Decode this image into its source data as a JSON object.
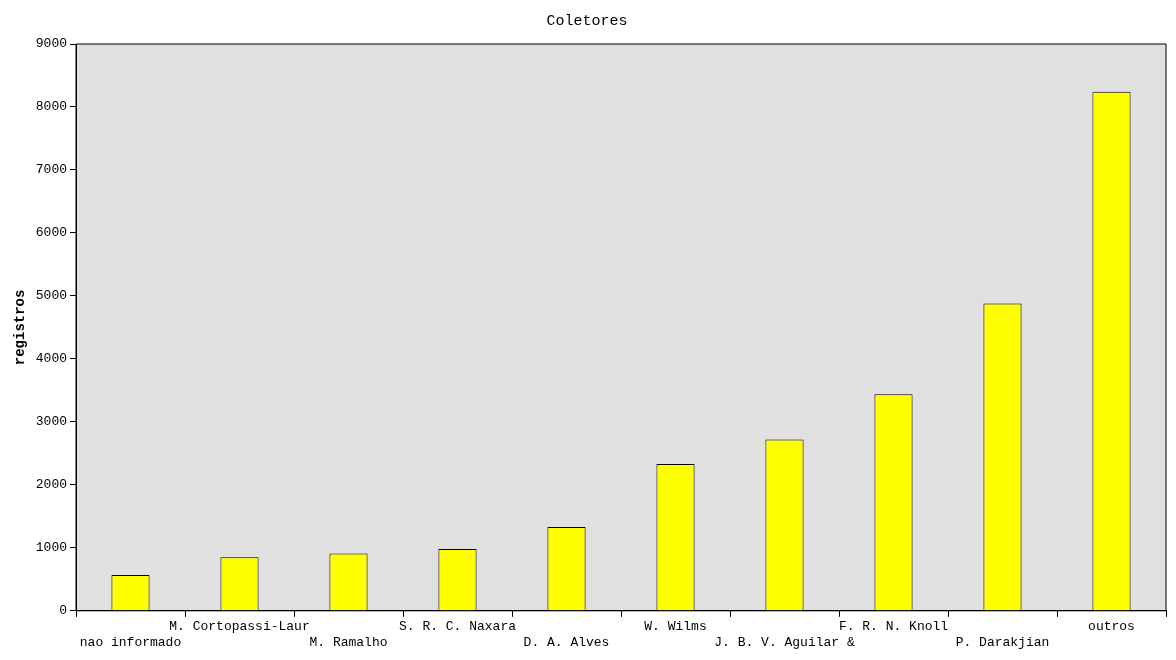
{
  "chart_data": {
    "type": "bar",
    "title": "Coletores",
    "ylabel": "registros",
    "categories": [
      "nao informado",
      "M. Cortopassi-Laur",
      "M. Ramalho",
      "S. R. C. Naxara",
      "D. A. Alves",
      "W. Wilms",
      "J. B. V. Aguilar &",
      "F. R. N. Knoll",
      "P. Darakjian",
      "outros"
    ],
    "values": [
      570,
      850,
      910,
      980,
      1330,
      2330,
      2720,
      3440,
      4880,
      8240
    ],
    "color": "#ffff00",
    "ylim": [
      0,
      9000
    ],
    "yticks": [
      0,
      1000,
      2000,
      3000,
      4000,
      5000,
      6000,
      7000,
      8000,
      9000
    ],
    "grid": false,
    "legend": false
  }
}
